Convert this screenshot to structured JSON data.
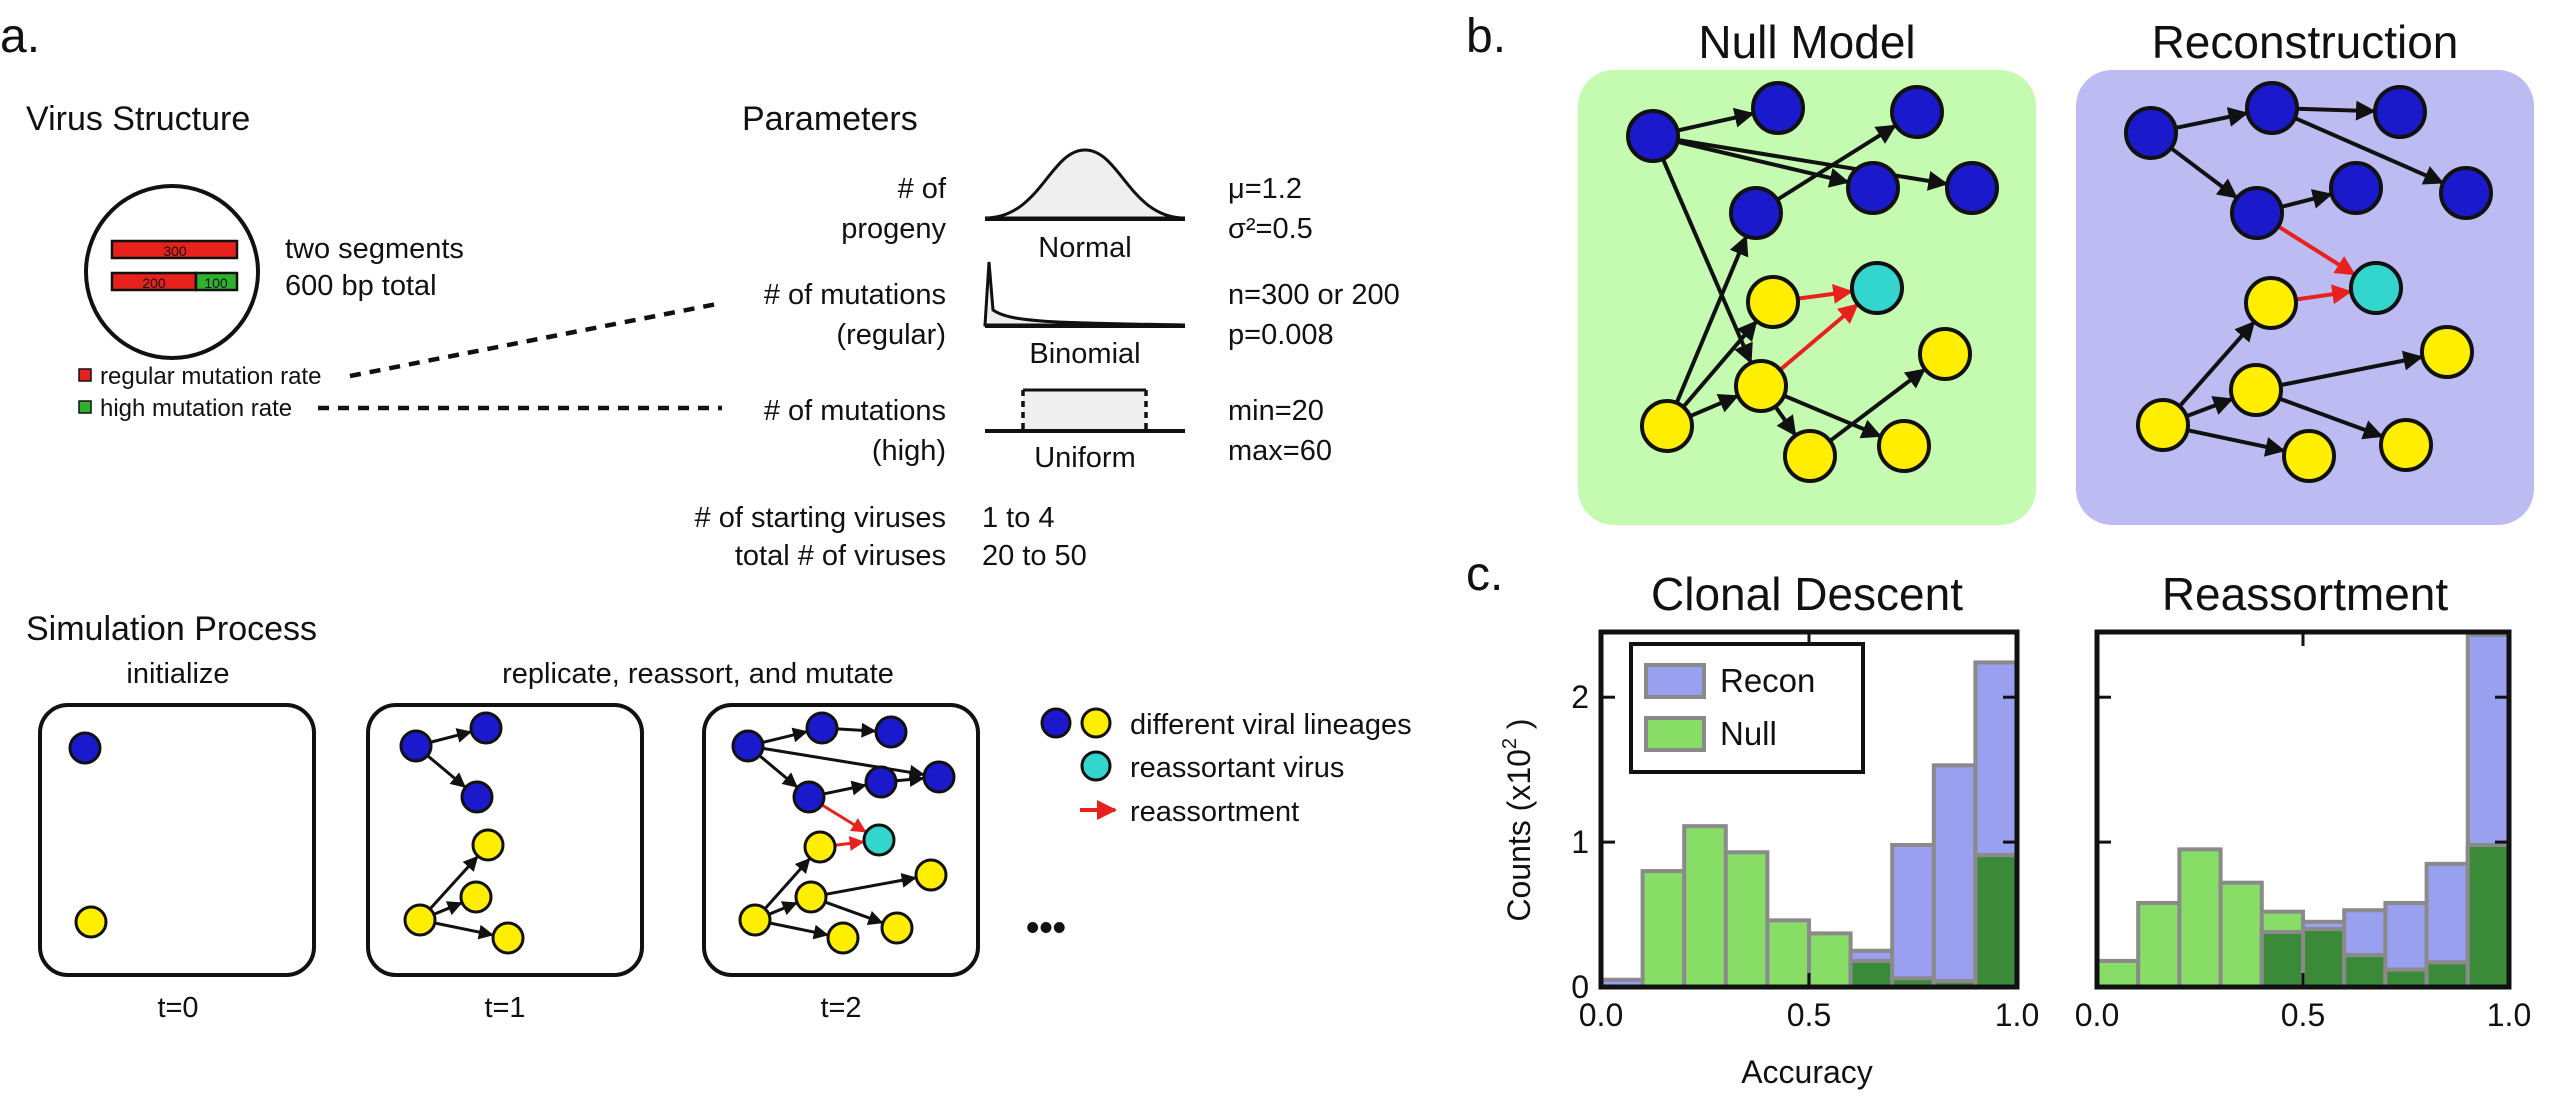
{
  "panel_a": {
    "label": "a.",
    "virus_structure": {
      "heading": "Virus Structure",
      "segment1_length": "300",
      "segment2_length_regular": "200",
      "segment2_length_high": "100",
      "desc_line1": "two segments",
      "desc_line2": "600 bp total",
      "legend_regular": "regular mutation rate",
      "legend_high": "high mutation rate",
      "color_regular": "#e8211c",
      "color_high": "#2eb22e"
    },
    "parameters": {
      "heading": "Parameters",
      "progeny": {
        "label1": "# of",
        "label2": "progeny",
        "dist": "Normal",
        "val1": "μ=1.2",
        "val2": "σ²=0.5"
      },
      "mut_regular": {
        "label1": "# of mutations",
        "label2": "(regular)",
        "dist": "Binomial",
        "val1": "n=300 or 200",
        "val2": "p=0.008"
      },
      "mut_high": {
        "label1": "# of mutations",
        "label2": "(high)",
        "dist": "Uniform",
        "val1": "min=20",
        "val2": "max=60"
      },
      "starting_label": "# of starting viruses",
      "starting_value": "1 to 4",
      "total_label": "total # of viruses",
      "total_value": "20 to 50"
    },
    "simulation": {
      "heading": "Simulation Process",
      "step_initialize": "initialize",
      "step_replicate": "replicate, reassort, and mutate",
      "t0": "t=0",
      "t1": "t=1",
      "t2": "t=2",
      "ellipsis": "•••",
      "legend_lineages": "different viral lineages",
      "legend_reassortant": "reassortant virus",
      "legend_reassortment": "reassortment"
    },
    "colors": {
      "blue_node": "#1a1acc",
      "yellow_node": "#ffee00",
      "cyan_node": "#33d6cc",
      "reassort_arrow": "#e8211c"
    }
  },
  "panel_b": {
    "label": "b.",
    "null_title": "Null Model",
    "recon_title": "Reconstruction",
    "null_bg": "#c4fbb0",
    "recon_bg": "#bcbcf2"
  },
  "panel_c": {
    "label": "c.",
    "ylabel": "Counts (x10",
    "ylabel_exp": "2",
    "ylabel_close": " )",
    "xlabel": "Accuracy",
    "recon_color": "#9aa0f0",
    "null_color": "#88dd66",
    "overlap_color": "#3a8a3a"
  },
  "chart_data": [
    {
      "type": "bar",
      "title": "Clonal Descent",
      "xlabel": "Accuracy",
      "ylabel": "Counts (x10² )",
      "xlim": [
        0,
        1
      ],
      "ylim": [
        0,
        2.45
      ],
      "bin_edges": [
        0.0,
        0.1,
        0.2,
        0.3,
        0.4,
        0.5,
        0.6,
        0.7,
        0.8,
        0.9,
        1.0
      ],
      "x_ticks": [
        "0.0",
        "0.5",
        "1.0"
      ],
      "y_ticks": [
        "0",
        "1",
        "2"
      ],
      "legend_position": "top-left",
      "series": [
        {
          "name": "Recon",
          "values": [
            0.05,
            0.0,
            0.0,
            0.0,
            0.0,
            0.0,
            0.25,
            0.98,
            1.53,
            2.24
          ]
        },
        {
          "name": "Null",
          "values": [
            0.0,
            0.8,
            1.11,
            0.93,
            0.46,
            0.37,
            0.18,
            0.06,
            0.04,
            0.91
          ]
        }
      ]
    },
    {
      "type": "bar",
      "title": "Reassortment",
      "xlabel": "Accuracy",
      "xlim": [
        0,
        1
      ],
      "ylim": [
        0,
        2.45
      ],
      "bin_edges": [
        0.0,
        0.1,
        0.2,
        0.3,
        0.4,
        0.5,
        0.6,
        0.7,
        0.8,
        0.9,
        1.0
      ],
      "x_ticks": [
        "0.0",
        "0.5",
        "1.0"
      ],
      "series": [
        {
          "name": "Recon",
          "values": [
            0.0,
            0.0,
            0.0,
            0.0,
            0.38,
            0.45,
            0.53,
            0.58,
            0.85,
            2.43
          ]
        },
        {
          "name": "Null",
          "values": [
            0.18,
            0.58,
            0.95,
            0.72,
            0.52,
            0.4,
            0.22,
            0.12,
            0.17,
            0.98
          ]
        }
      ]
    }
  ]
}
